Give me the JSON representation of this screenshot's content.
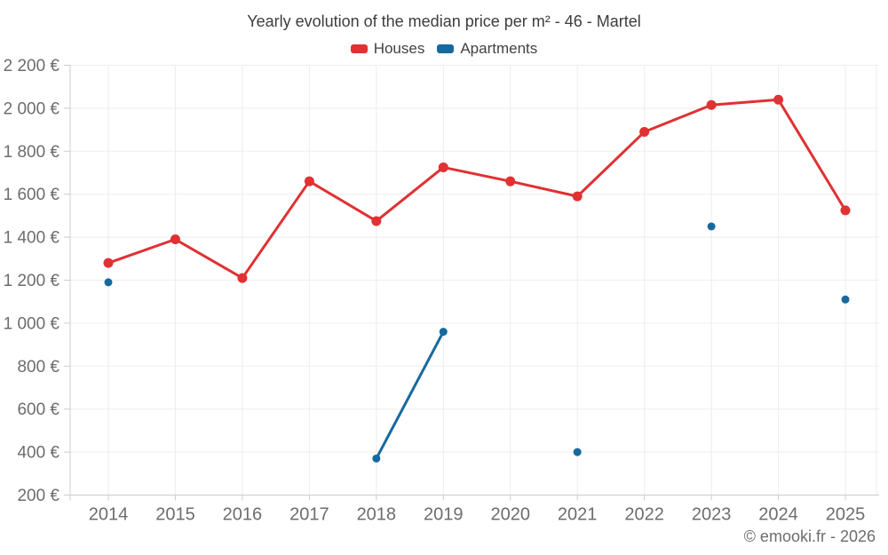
{
  "header": {
    "title": "Yearly evolution of the median price per m² - 46 - Martel"
  },
  "footer": {
    "copyright": "© emooki.fr - 2026"
  },
  "colors": {
    "houses": "#e03133",
    "apartments": "#16699f",
    "grid": "#ededed",
    "axis": "#cccccc",
    "tick": "#cccccc",
    "axis_text": "#6d6d6d"
  },
  "chart_data": {
    "type": "line",
    "title": "Yearly evolution of the median price per m² - 46 - Martel",
    "categories": [
      "2014",
      "2015",
      "2016",
      "2017",
      "2018",
      "2019",
      "2020",
      "2021",
      "2022",
      "2023",
      "2024",
      "2025"
    ],
    "series": [
      {
        "name": "Houses",
        "color": "#e03133",
        "marker_radius": 5.5,
        "values": [
          1280,
          1390,
          1210,
          1660,
          1475,
          1725,
          1660,
          1590,
          1890,
          2015,
          2040,
          1525
        ]
      },
      {
        "name": "Apartments",
        "color": "#16699f",
        "marker_radius": 4.5,
        "values": [
          1190,
          null,
          null,
          null,
          370,
          960,
          null,
          400,
          null,
          1450,
          null,
          1110
        ]
      }
    ],
    "xlabel": "",
    "ylabel": "",
    "ylim": [
      200,
      2200
    ],
    "y_tick_values": [
      200,
      400,
      600,
      800,
      1000,
      1200,
      1400,
      1600,
      1800,
      2000,
      2200
    ],
    "y_tick_labels": [
      "200 €",
      "400 €",
      "600 €",
      "800 €",
      "1 000 €",
      "1 200 €",
      "1 400 €",
      "1 600 €",
      "1 800 €",
      "2 000 €",
      "2 200 €"
    ],
    "grid": true,
    "legend_position": "top",
    "gap_handling": "break-line-on-null"
  }
}
